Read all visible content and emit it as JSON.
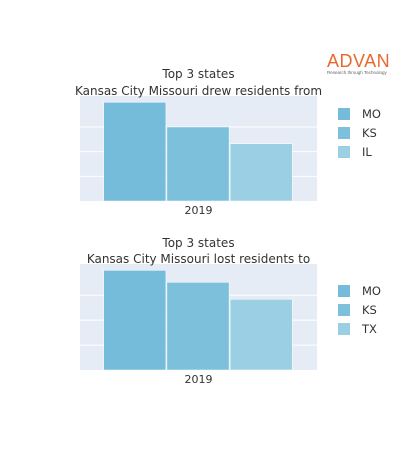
{
  "logo": {
    "word": "ADVAN",
    "tagline": "Research through Technology"
  },
  "chart_data": [
    {
      "type": "bar",
      "title": "Top 3 states",
      "subtitle": "Kansas City Missouri drew residents from",
      "categories": [
        "2019"
      ],
      "series": [
        {
          "name": "MO",
          "values": [
            1.0
          ],
          "color": "#74bcd9"
        },
        {
          "name": "KS",
          "values": [
            0.75
          ],
          "color": "#7cc0dc"
        },
        {
          "name": "IL",
          "values": [
            0.58
          ],
          "color": "#9bcfe3"
        }
      ],
      "ylim": [
        0,
        1.0
      ],
      "grid": true,
      "legend_position": "right",
      "background": "#e5ecf6"
    },
    {
      "type": "bar",
      "title": "Top 3 states",
      "subtitle": "Kansas City Missouri lost residents to",
      "categories": [
        "2019"
      ],
      "series": [
        {
          "name": "MO",
          "values": [
            1.0
          ],
          "color": "#74bcd9"
        },
        {
          "name": "KS",
          "values": [
            0.88
          ],
          "color": "#7cc0dc"
        },
        {
          "name": "TX",
          "values": [
            0.71
          ],
          "color": "#9bcfe3"
        }
      ],
      "ylim": [
        0,
        1.0
      ],
      "grid": true,
      "legend_position": "right",
      "background": "#e5ecf6"
    }
  ]
}
